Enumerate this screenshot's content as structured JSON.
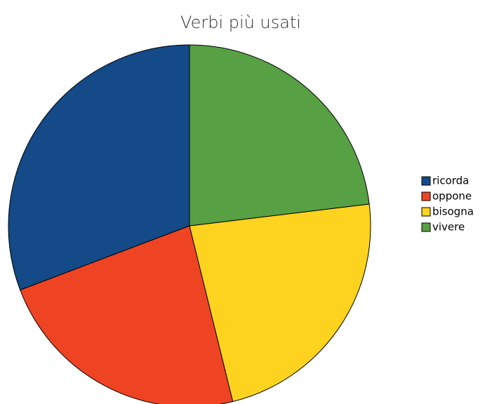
{
  "chart_data": {
    "type": "pie",
    "title": "Verbi più usati",
    "categories": [
      "ricorda",
      "oppone",
      "bisogna",
      "vivere"
    ],
    "values": [
      4,
      3,
      3,
      3
    ],
    "colors": [
      "#134a87",
      "#ef4423",
      "#fdd31f",
      "#57a044"
    ],
    "legend": "right"
  }
}
